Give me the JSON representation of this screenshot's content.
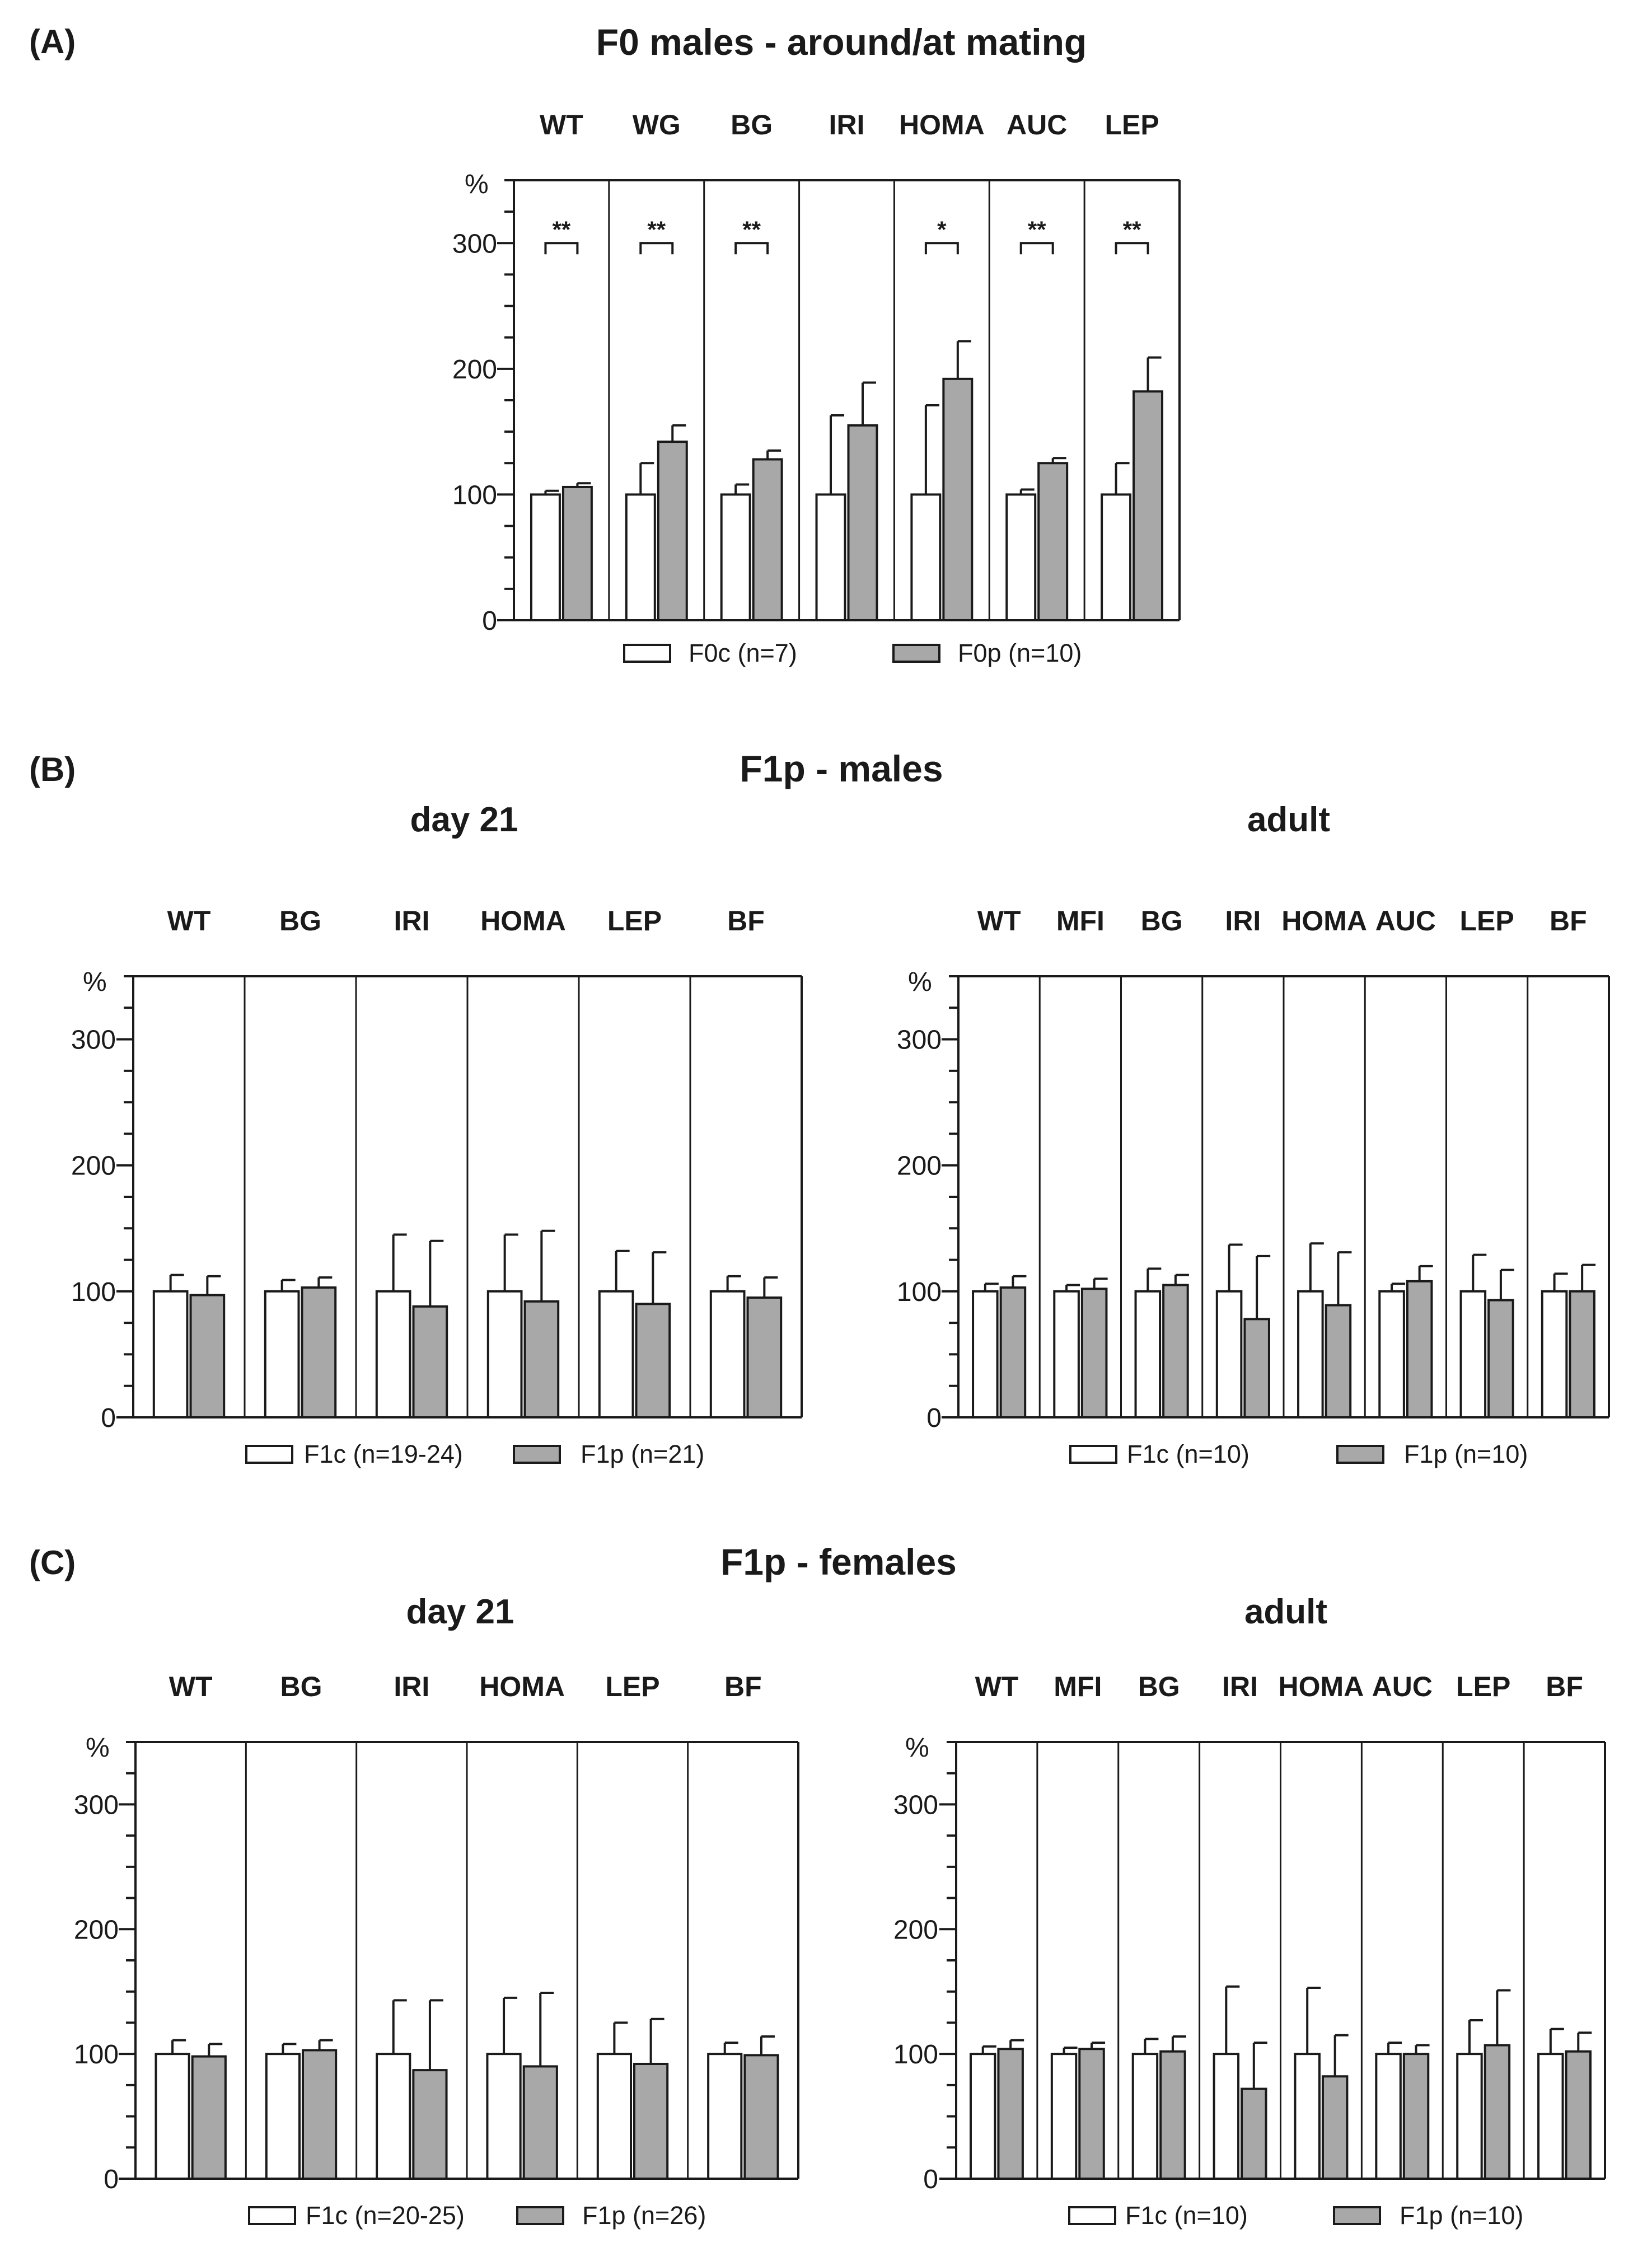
{
  "colors": {
    "control": "#ffffff",
    "treated": "#a8a8a8",
    "stroke": "#1a1a1a"
  },
  "chart_data": [
    {
      "id": "A",
      "panel": "(A)",
      "title": "F0 males - around/at mating",
      "subtitle": "",
      "type": "bar",
      "ylabel": "%",
      "ylim": [
        0,
        350
      ],
      "yticks": [
        0,
        100,
        200,
        300
      ],
      "categories": [
        "WT",
        "WG",
        "BG",
        "IRI",
        "HOMA",
        "AUC",
        "LEP"
      ],
      "series": [
        {
          "name": "F0c (n=7)",
          "values": [
            100,
            100,
            100,
            100,
            100,
            100,
            100
          ],
          "errors": [
            3,
            25,
            8,
            63,
            71,
            4,
            25
          ]
        },
        {
          "name": "F0p (n=10)",
          "values": [
            106,
            142,
            128,
            155,
            192,
            125,
            182
          ],
          "errors": [
            3,
            13,
            7,
            34,
            30,
            4,
            27
          ]
        }
      ],
      "significance": [
        "**",
        "**",
        "**",
        "",
        "*",
        "**",
        "**"
      ]
    },
    {
      "id": "B1",
      "panel": "(B)",
      "title": "F1p - males",
      "subtitle": "day 21",
      "type": "bar",
      "ylabel": "%",
      "ylim": [
        0,
        350
      ],
      "yticks": [
        0,
        100,
        200,
        300
      ],
      "categories": [
        "WT",
        "BG",
        "IRI",
        "HOMA",
        "LEP",
        "BF"
      ],
      "series": [
        {
          "name": "F1c (n=19-24)",
          "values": [
            100,
            100,
            100,
            100,
            100,
            100
          ],
          "errors": [
            13,
            9,
            45,
            45,
            32,
            12
          ]
        },
        {
          "name": "F1p (n=21)",
          "values": [
            97,
            103,
            88,
            92,
            90,
            95
          ],
          "errors": [
            15,
            8,
            52,
            56,
            41,
            16
          ]
        }
      ]
    },
    {
      "id": "B2",
      "panel": "",
      "title": "",
      "subtitle": "adult",
      "type": "bar",
      "ylabel": "%",
      "ylim": [
        0,
        350
      ],
      "yticks": [
        0,
        100,
        200,
        300
      ],
      "categories": [
        "WT",
        "MFI",
        "BG",
        "IRI",
        "HOMA",
        "AUC",
        "LEP",
        "BF"
      ],
      "series": [
        {
          "name": "F1c (n=10)",
          "values": [
            100,
            100,
            100,
            100,
            100,
            100,
            100,
            100
          ],
          "errors": [
            6,
            5,
            18,
            37,
            38,
            6,
            29,
            14
          ]
        },
        {
          "name": "F1p (n=10)",
          "values": [
            103,
            102,
            105,
            78,
            89,
            108,
            93,
            100
          ],
          "errors": [
            9,
            8,
            8,
            50,
            42,
            12,
            24,
            21
          ]
        }
      ]
    },
    {
      "id": "C1",
      "panel": "(C)",
      "title": "F1p - females",
      "subtitle": "day 21",
      "type": "bar",
      "ylabel": "%",
      "ylim": [
        0,
        350
      ],
      "yticks": [
        0,
        100,
        200,
        300
      ],
      "categories": [
        "WT",
        "BG",
        "IRI",
        "HOMA",
        "LEP",
        "BF"
      ],
      "series": [
        {
          "name": "F1c (n=20-25)",
          "values": [
            100,
            100,
            100,
            100,
            100,
            100
          ],
          "errors": [
            11,
            8,
            43,
            45,
            25,
            9
          ]
        },
        {
          "name": "F1p (n=26)",
          "values": [
            98,
            103,
            87,
            90,
            92,
            99
          ],
          "errors": [
            10,
            8,
            56,
            59,
            36,
            15
          ]
        }
      ]
    },
    {
      "id": "C2",
      "panel": "",
      "title": "",
      "subtitle": "adult",
      "type": "bar",
      "ylabel": "%",
      "ylim": [
        0,
        350
      ],
      "yticks": [
        0,
        100,
        200,
        300
      ],
      "categories": [
        "WT",
        "MFI",
        "BG",
        "IRI",
        "HOMA",
        "AUC",
        "LEP",
        "BF"
      ],
      "series": [
        {
          "name": "F1c (n=10)",
          "values": [
            100,
            100,
            100,
            100,
            100,
            100,
            100,
            100
          ],
          "errors": [
            6,
            5,
            12,
            54,
            53,
            9,
            27,
            20
          ]
        },
        {
          "name": "F1p (n=10)",
          "values": [
            104,
            104,
            102,
            72,
            82,
            100,
            107,
            102
          ],
          "errors": [
            7,
            5,
            12,
            37,
            33,
            7,
            44,
            15
          ]
        }
      ]
    }
  ]
}
